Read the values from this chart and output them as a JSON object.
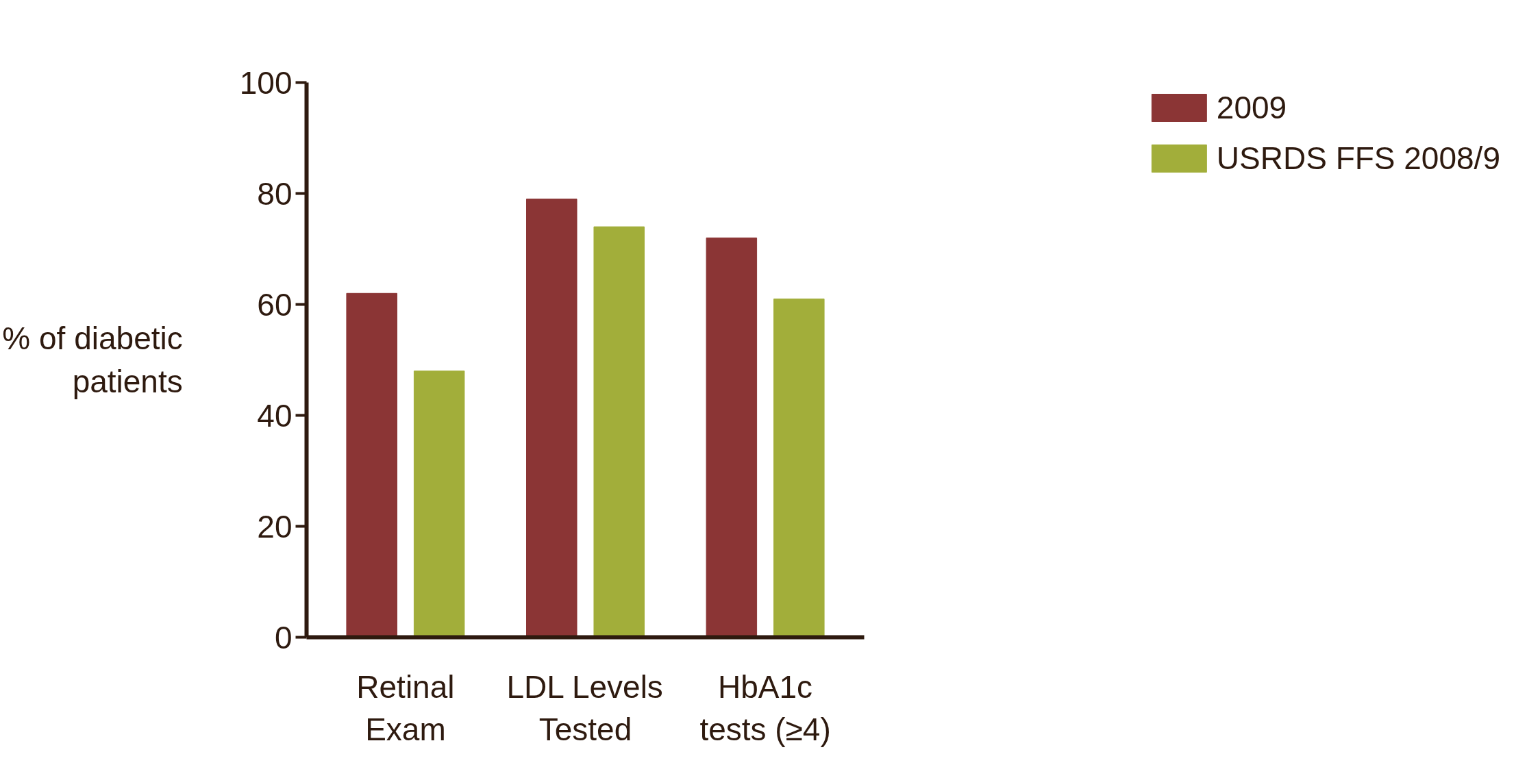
{
  "chart_data": {
    "type": "bar",
    "ylabel": "% of diabetic\npatients",
    "categories": [
      "Retinal\nExam",
      "LDL Levels\nTested",
      "HbA1c\ntests (≥4)"
    ],
    "series": [
      {
        "name": "2009",
        "color": "#8b3535",
        "values": [
          62,
          79,
          72
        ]
      },
      {
        "name": "USRDS FFS 2008/9",
        "color": "#a2ae3a",
        "values": [
          48,
          74,
          61
        ]
      }
    ],
    "ylim": [
      0,
      100
    ],
    "yticks": [
      0,
      20,
      40,
      60,
      80,
      100
    ],
    "grid": false,
    "legend": "top right"
  }
}
